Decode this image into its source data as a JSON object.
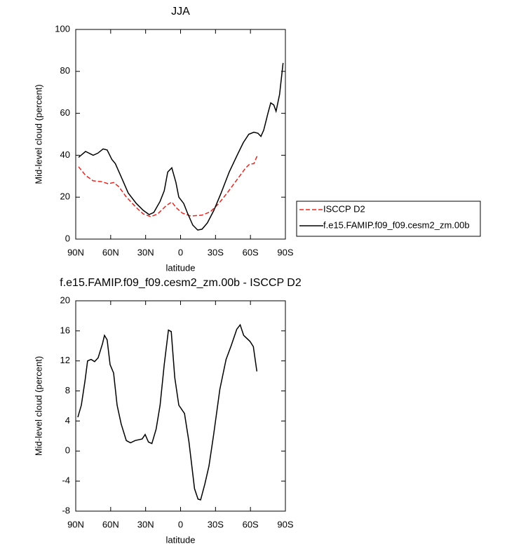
{
  "chart_data": [
    {
      "type": "line",
      "title": "JJA",
      "xlabel": "latitude",
      "ylabel": "Mid-level cloud (percent)",
      "xlim": [
        90,
        -90
      ],
      "xticks": [
        {
          "value": 90,
          "label": "90N"
        },
        {
          "value": 60,
          "label": "60N"
        },
        {
          "value": 30,
          "label": "30N"
        },
        0,
        {
          "value": -30,
          "label": "30S"
        },
        {
          "value": -60,
          "label": "60S"
        },
        {
          "value": -90,
          "label": "90S"
        }
      ],
      "ylim": [
        0,
        100
      ],
      "yticks": [
        0,
        20,
        40,
        60,
        80,
        100
      ],
      "legend": "right",
      "series": [
        {
          "name": "ISCCP D2",
          "color": "#e8251f",
          "line_style": "dashed",
          "x": [
            87.6,
            81.6,
            75,
            67.7,
            62,
            57.5,
            53,
            47,
            38,
            32,
            25.6,
            19.6,
            12.3,
            7.5,
            3.3,
            -1.5,
            -8.7,
            -18.4,
            -25.6,
            -32.8,
            -40.6,
            -48.5,
            -55.7,
            -59.3,
            -63,
            -66
          ],
          "values": [
            34.5,
            30.4,
            27.8,
            27.4,
            26.4,
            27,
            25,
            20.4,
            15,
            12,
            10.7,
            12,
            16,
            17.7,
            14.7,
            12.4,
            11,
            11.4,
            13,
            17,
            22.4,
            28.4,
            33.8,
            35.8,
            36,
            40
          ]
        },
        {
          "name": "f.e15.FAMIP.f09_f09.cesm2_zm.00b",
          "color": "#000000",
          "line_style": "solid",
          "x": [
            87.6,
            81.6,
            75,
            71,
            66.5,
            63,
            59,
            56,
            50,
            45,
            38,
            32,
            27,
            23,
            17.6,
            14,
            11,
            7.5,
            4,
            1.5,
            -2.7,
            -5.7,
            -10.5,
            -14.7,
            -18.4,
            -23,
            -28.6,
            -34.6,
            -41.8,
            -49,
            -53.8,
            -58.6,
            -63,
            -66.4,
            -69,
            -71.4,
            -75,
            -77.4,
            -80,
            -82,
            -85,
            -88
          ],
          "values": [
            39,
            41.8,
            40,
            41,
            43,
            42.5,
            38,
            36,
            28.5,
            22,
            17,
            13.7,
            11.7,
            12.7,
            18,
            23,
            32,
            34,
            27,
            20,
            17,
            12.7,
            6.7,
            4.3,
            4.7,
            7.7,
            13.7,
            21.7,
            32,
            40.5,
            46,
            50,
            51,
            50.5,
            49,
            52,
            60,
            65,
            64,
            61,
            69,
            84
          ]
        }
      ]
    },
    {
      "type": "line",
      "title": "f.e15.FAMIP.f09_f09.cesm2_zm.00b - ISCCP D2",
      "xlabel": "latitude",
      "ylabel": "Mid-level cloud (percent)",
      "xlim": [
        90,
        -90
      ],
      "xticks": [
        {
          "value": 90,
          "label": "90N"
        },
        {
          "value": 60,
          "label": "60N"
        },
        {
          "value": 30,
          "label": "30N"
        },
        0,
        {
          "value": -30,
          "label": "30S"
        },
        {
          "value": -60,
          "label": "60S"
        },
        {
          "value": -90,
          "label": "90S"
        }
      ],
      "ylim": [
        -8,
        20
      ],
      "yticks": [
        -8,
        -4,
        0,
        4,
        8,
        12,
        16,
        20
      ],
      "color": "#000000",
      "x": [
        88.2,
        85.2,
        82,
        79.8,
        76.8,
        73.8,
        70.8,
        67,
        65.3,
        63,
        60.5,
        57.5,
        54.5,
        51,
        46.6,
        43,
        39,
        33,
        30.4,
        27.6,
        24.6,
        21,
        17.6,
        14,
        10.4,
        8,
        5,
        1.5,
        -3.4,
        -7.2,
        -12,
        -15,
        -17.2,
        -20.8,
        -24.4,
        -28.4,
        -33.7,
        -39.1,
        -43.4,
        -48.2,
        -51.2,
        -54.2,
        -59.6,
        -62.5,
        -65.5
      ],
      "values": [
        4.5,
        6.1,
        9.4,
        12,
        12.2,
        11.9,
        12.4,
        14.3,
        15.4,
        14.8,
        11.5,
        10.4,
        6.1,
        3.6,
        1.4,
        1.1,
        1.4,
        1.6,
        2.2,
        1.2,
        1,
        2.9,
        6.1,
        11.5,
        16.1,
        15.9,
        9.8,
        6.1,
        5,
        1.2,
        -5,
        -6.4,
        -6.5,
        -4.4,
        -2,
        2.2,
        8.2,
        12.2,
        14,
        16.2,
        16.8,
        15.4,
        14.6,
        13.9,
        10.6
      ]
    }
  ]
}
